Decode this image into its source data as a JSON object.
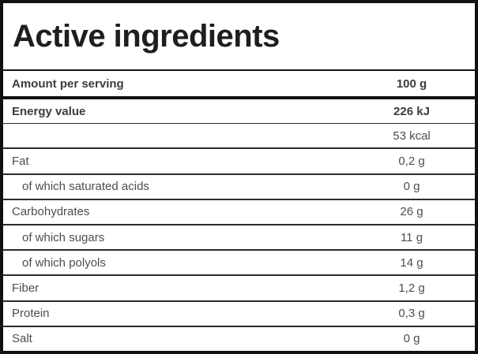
{
  "table": {
    "title": "Active ingredients",
    "serving_row": {
      "label": "Amount per serving",
      "value": "100 g"
    },
    "rows": [
      {
        "label": "Energy value",
        "value": "226 kJ",
        "bold": true,
        "separator": "thin"
      },
      {
        "label": "",
        "value": "53 kcal"
      },
      {
        "label": "Fat",
        "value": "0,2 g"
      },
      {
        "label": "of which saturated acids",
        "value": "0 g",
        "indent": true
      },
      {
        "label": "Carbohydrates",
        "value": "26 g"
      },
      {
        "label": "of which sugars",
        "value": "11 g",
        "indent": true
      },
      {
        "label": "of which polyols",
        "value": "14 g",
        "indent": true
      },
      {
        "label": "Fiber",
        "value": "1,2 g"
      },
      {
        "label": "Protein",
        "value": "0,3 g"
      },
      {
        "label": "Salt",
        "value": "0 g"
      }
    ],
    "colors": {
      "outer_border": "#111111",
      "row_separator": "#2c2c2c",
      "title_text": "#1e1e1e",
      "bold_text": "#3c3c42",
      "regular_text": "#4d4d52",
      "background": "#ffffff"
    }
  }
}
